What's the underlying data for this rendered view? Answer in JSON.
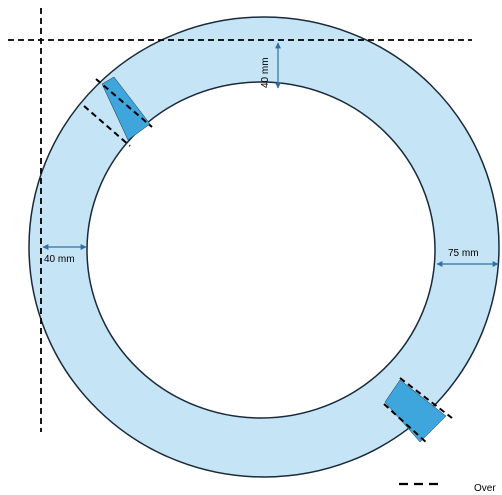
{
  "colors": {
    "ring_fill": "#c5e4f5",
    "ring_stroke": "#1a2a3a",
    "segment_fill": "#3fa6dd",
    "dashed_line": "#000000",
    "arrow": "#2e6fa8"
  },
  "dimensions": {
    "top_width": "40 mm",
    "left_width": "40 mm",
    "right_width": "75 mm"
  },
  "legend": {
    "label": "Over"
  },
  "icons": {
    "arrow_head": "double-headed-arrow",
    "legend_symbol": "dashed-line"
  }
}
